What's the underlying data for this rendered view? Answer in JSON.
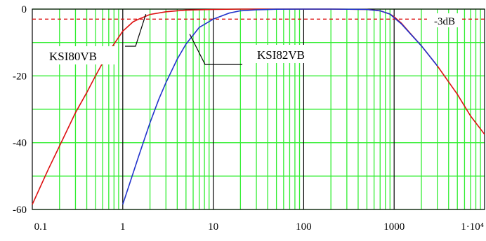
{
  "chart_data": {
    "type": "line",
    "title": "",
    "xlabel": "",
    "ylabel": "",
    "x_scale": "log",
    "xlim": [
      0.1,
      10000
    ],
    "ylim": [
      -60,
      0
    ],
    "x_tick_labels": [
      "0.1",
      "1",
      "10",
      "100",
      "1000",
      "1·10⁴"
    ],
    "x_ticks": [
      0.1,
      1,
      10,
      100,
      1000,
      10000
    ],
    "y_tick_labels": [
      "0",
      "-20",
      "-40",
      "-60"
    ],
    "y_ticks": [
      0,
      -20,
      -40,
      -60
    ],
    "grid": true,
    "colors": {
      "grid_minor": "#33ee33",
      "grid_major": "#000000",
      "red_series": "#dd1111",
      "blue_series": "#2233cc",
      "reference": "#dd1111",
      "leader": "#000000"
    },
    "reference_line": {
      "y": -3,
      "label": "-3dB"
    },
    "series": [
      {
        "name": "KSI80VB",
        "color": "#dd1111",
        "x": [
          0.1,
          0.15,
          0.2,
          0.3,
          0.4,
          0.5,
          0.7,
          1,
          1.3,
          1.5,
          2,
          3,
          5,
          10,
          20,
          50,
          100,
          200,
          500,
          700,
          900,
          1000,
          1200,
          1500,
          2000,
          3000,
          5000,
          7000,
          10000
        ],
        "y": [
          -58.5,
          -48,
          -41,
          -31,
          -25,
          -20,
          -12.8,
          -6.6,
          -3.8,
          -3,
          -1.6,
          -0.8,
          -0.3,
          -0.1,
          0,
          0,
          0,
          0,
          -0.1,
          -0.5,
          -1.5,
          -2.3,
          -4.2,
          -7.2,
          -11,
          -17,
          -25.5,
          -32,
          -37.5
        ]
      },
      {
        "name": "KSI82VB",
        "color": "#2233cc",
        "x": [
          1,
          1.2,
          1.5,
          2,
          2.5,
          3,
          4,
          5,
          7,
          10,
          15,
          20,
          30,
          50,
          100,
          200,
          500,
          700,
          900,
          1000,
          1200,
          1500,
          2000,
          3000
        ],
        "y": [
          -58.5,
          -52,
          -44,
          -34,
          -27,
          -22,
          -15,
          -10.5,
          -5.5,
          -3,
          -1.2,
          -0.5,
          -0.2,
          -0.05,
          0,
          0,
          -0.1,
          -0.5,
          -1.5,
          -2.6,
          -4.4,
          -7.3,
          -11,
          -17
        ]
      }
    ],
    "annotations": [
      {
        "text": "KSI80VB",
        "series": "KSI80VB"
      },
      {
        "text": "KSI82VB",
        "series": "KSI82VB"
      }
    ]
  }
}
